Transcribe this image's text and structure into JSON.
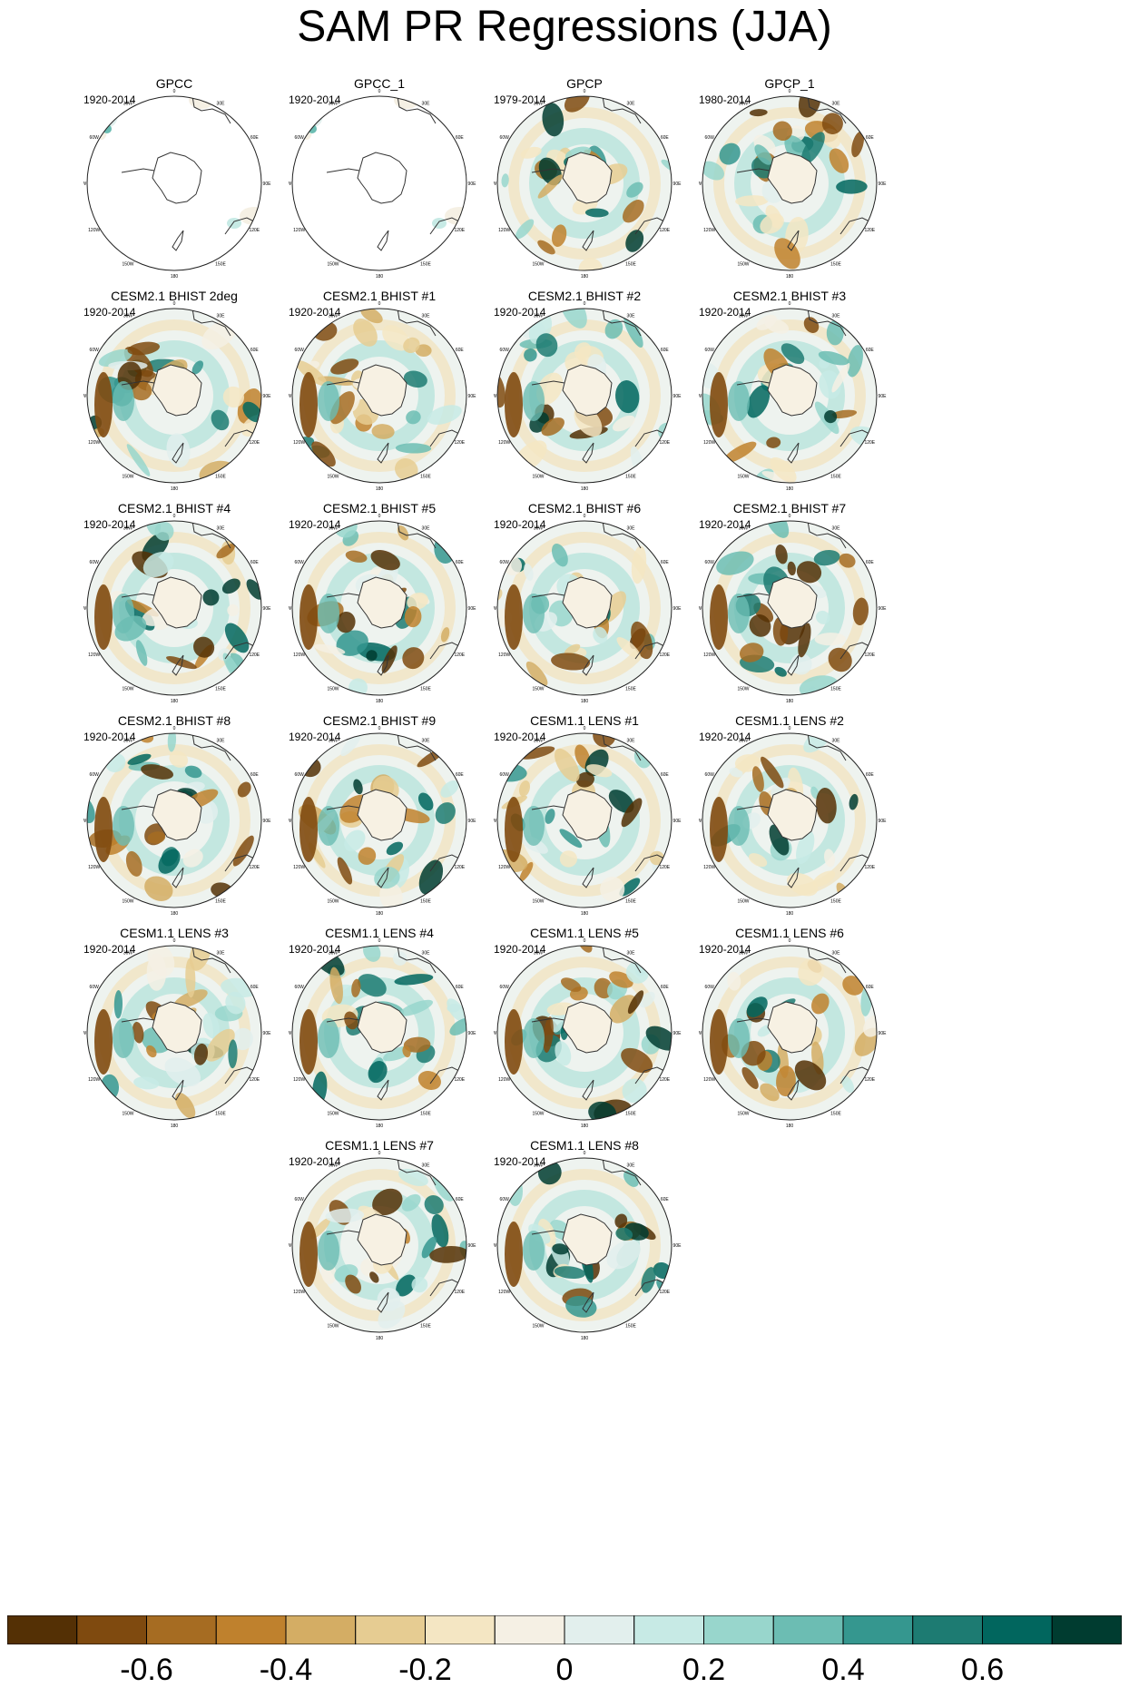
{
  "title": "SAM PR Regressions (JJA)",
  "chart_data": {
    "type": "heatmap",
    "title": "SAM PR Regressions (JJA)",
    "projection": "south polar stereographic",
    "panels": [
      {
        "name": "GPCC",
        "period": "1920-2014",
        "coverage": "land"
      },
      {
        "name": "GPCC_1",
        "period": "1920-2014",
        "coverage": "land"
      },
      {
        "name": "GPCP",
        "period": "1979-2014",
        "coverage": "global"
      },
      {
        "name": "GPCP_1",
        "period": "1980-2014",
        "coverage": "global"
      },
      {
        "name": "CESM2.1 BHIST 2deg",
        "period": "1920-2014",
        "coverage": "global"
      },
      {
        "name": "CESM2.1 BHIST #1",
        "period": "1920-2014",
        "coverage": "global"
      },
      {
        "name": "CESM2.1 BHIST #2",
        "period": "1920-2014",
        "coverage": "global"
      },
      {
        "name": "CESM2.1 BHIST #3",
        "period": "1920-2014",
        "coverage": "global"
      },
      {
        "name": "CESM2.1 BHIST #4",
        "period": "1920-2014",
        "coverage": "global"
      },
      {
        "name": "CESM2.1 BHIST #5",
        "period": "1920-2014",
        "coverage": "global"
      },
      {
        "name": "CESM2.1 BHIST #6",
        "period": "1920-2014",
        "coverage": "global"
      },
      {
        "name": "CESM2.1 BHIST #7",
        "period": "1920-2014",
        "coverage": "global"
      },
      {
        "name": "CESM2.1 BHIST #8",
        "period": "1920-2014",
        "coverage": "global"
      },
      {
        "name": "CESM2.1 BHIST #9",
        "period": "1920-2014",
        "coverage": "global"
      },
      {
        "name": "CESM1.1 LENS #1",
        "period": "1920-2014",
        "coverage": "global"
      },
      {
        "name": "CESM1.1 LENS #2",
        "period": "1920-2014",
        "coverage": "global"
      },
      {
        "name": "CESM1.1 LENS #3",
        "period": "1920-2014",
        "coverage": "global"
      },
      {
        "name": "CESM1.1 LENS #4",
        "period": "1920-2014",
        "coverage": "global"
      },
      {
        "name": "CESM1.1 LENS #5",
        "period": "1920-2014",
        "coverage": "global"
      },
      {
        "name": "CESM1.1 LENS #6",
        "period": "1920-2014",
        "coverage": "global"
      },
      {
        "name": "CESM1.1 LENS #7",
        "period": "1920-2014",
        "coverage": "global"
      },
      {
        "name": "CESM1.1 LENS #8",
        "period": "1920-2014",
        "coverage": "global"
      }
    ],
    "longitude_labels": [
      "0",
      "30E",
      "60E",
      "90E",
      "120E",
      "150E",
      "180",
      "150W",
      "120W",
      "90W",
      "60W",
      "30W"
    ],
    "colorbar": {
      "levels": [
        -0.7,
        -0.6,
        -0.5,
        -0.4,
        -0.3,
        -0.2,
        -0.1,
        0,
        0.1,
        0.2,
        0.3,
        0.4,
        0.5,
        0.6,
        0.7
      ],
      "colors": [
        "#543005",
        "#7f4a0f",
        "#a66c22",
        "#bf812d",
        "#d4ad64",
        "#e6cc92",
        "#f4e6c3",
        "#f5f0e4",
        "#e2efed",
        "#c7eae5",
        "#98d6cc",
        "#6cbdb3",
        "#35978f",
        "#1d7b72",
        "#01665e",
        "#003c30"
      ],
      "tick_labels": [
        "-0.6",
        "-0.4",
        "-0.2",
        "0",
        "0.2",
        "0.4",
        "0.6"
      ],
      "tick_values": [
        -0.6,
        -0.4,
        -0.2,
        0,
        0.2,
        0.4,
        0.6
      ]
    }
  }
}
